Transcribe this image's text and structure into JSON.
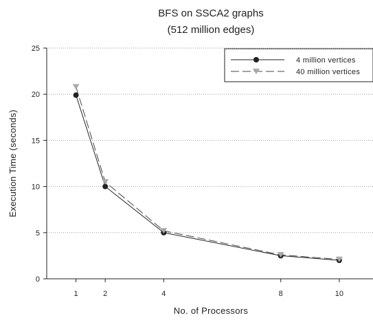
{
  "chart_data": {
    "type": "line",
    "title_line1": "BFS on SSCA2 graphs",
    "title_line2": "(512 million edges)",
    "xlabel": "No. of Processors",
    "ylabel": "Execution Time (seconds)",
    "x": [
      1,
      2,
      4,
      8,
      10
    ],
    "x_ticks": [
      "1",
      "2",
      "4",
      "8",
      "10"
    ],
    "y_ticks": [
      "0",
      "5",
      "10",
      "15",
      "20",
      "25"
    ],
    "xlim": [
      0,
      11.2
    ],
    "ylim": [
      0,
      25
    ],
    "grid": "horizontal-dotted",
    "legend_position": "top-right",
    "series": [
      {
        "name": "4 million vertices",
        "values": [
          19.9,
          10.0,
          5.0,
          2.5,
          2.0
        ],
        "color": "#222222",
        "dash": "solid",
        "marker": "circle"
      },
      {
        "name": "40 million vertices",
        "values": [
          20.8,
          10.5,
          5.2,
          2.6,
          2.1
        ],
        "color": "#444444",
        "marker_color": "#a9a9a9",
        "dash": "dashed",
        "marker": "triangle-down"
      }
    ]
  }
}
